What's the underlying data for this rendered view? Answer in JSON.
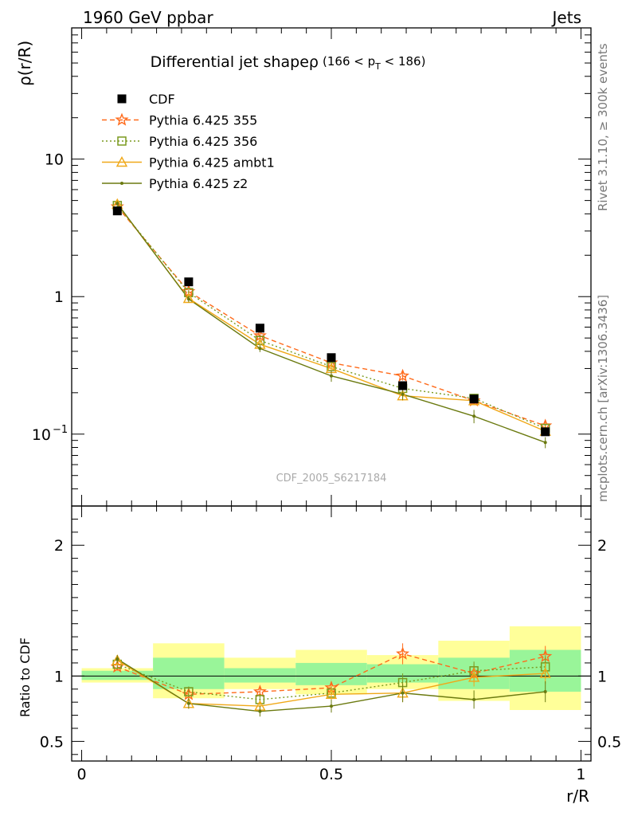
{
  "header": {
    "beam": "1960 GeV ppbar",
    "category": "Jets"
  },
  "side_labels": {
    "rivet": "Rivet 3.1.10, ≥ 300k events",
    "source": "mcplots.cern.ch [arXiv:1306.3436]"
  },
  "chart_data": [
    {
      "type": "scatter",
      "panel": "main",
      "title": "Differential jet shapeρ",
      "title_range": "(166 < p",
      "title_sub": "T",
      "title_range_end": " < 186)",
      "watermark": "CDF_2005_S6217184",
      "ylabel": "ρ(r/R)",
      "xlabel": "",
      "yscale": "log",
      "xlim": [
        -0.02,
        1.02
      ],
      "ylim": [
        0.03,
        90
      ],
      "yticks": [
        {
          "value": 10,
          "label": "10"
        },
        {
          "value": 1,
          "label": "1"
        },
        {
          "value": 0.1,
          "label": "10",
          "sup": "−1"
        }
      ],
      "legend_position": "top-left",
      "x": [
        0.0714,
        0.2143,
        0.3571,
        0.5,
        0.6429,
        0.7857,
        0.9286
      ],
      "series": [
        {
          "name": "CDF",
          "color": "#000000",
          "marker": "square-filled",
          "line": "none",
          "values": [
            4.2,
            1.28,
            0.59,
            0.36,
            0.225,
            0.18,
            0.104
          ],
          "errors": [
            0.1,
            0.03,
            0.015,
            0.01,
            0.008,
            0.006,
            0.005
          ]
        },
        {
          "name": "Pythia 6.425 355",
          "color": "#ff6a1a",
          "marker": "star",
          "line": "dashed",
          "values": [
            4.5,
            1.09,
            0.52,
            0.33,
            0.265,
            0.175,
            0.115
          ],
          "errors": [
            0.1,
            0.05,
            0.025,
            0.02,
            0.02,
            0.012,
            0.008
          ]
        },
        {
          "name": "Pythia 6.425 356",
          "color": "#7a9a1f",
          "marker": "square-open",
          "line": "dotted",
          "values": [
            4.6,
            1.07,
            0.48,
            0.31,
            0.215,
            0.182,
            0.11
          ],
          "errors": [
            0.1,
            0.05,
            0.025,
            0.02,
            0.018,
            0.012,
            0.008
          ]
        },
        {
          "name": "Pythia 6.425 ambt1",
          "color": "#f0a818",
          "marker": "triangle-open",
          "line": "solid",
          "values": [
            4.7,
            0.97,
            0.45,
            0.3,
            0.19,
            0.175,
            0.105
          ],
          "errors": [
            0.1,
            0.05,
            0.025,
            0.02,
            0.015,
            0.012,
            0.008
          ]
        },
        {
          "name": "Pythia 6.425 z2",
          "color": "#6b7a10",
          "marker": "dot",
          "line": "solid",
          "values": [
            4.75,
            0.96,
            0.42,
            0.265,
            0.195,
            0.135,
            0.087
          ],
          "errors": [
            0.1,
            0.05,
            0.025,
            0.025,
            0.018,
            0.015,
            0.008
          ]
        }
      ]
    },
    {
      "type": "scatter",
      "panel": "ratio",
      "ylabel": "Ratio to CDF",
      "xlabel": "r/R",
      "xlim": [
        -0.02,
        1.02
      ],
      "ylim": [
        0.35,
        2.3
      ],
      "yticks": [
        {
          "value": 2,
          "label": "2"
        },
        {
          "value": 1,
          "label": "1"
        },
        {
          "value": 0.5,
          "label": "0.5"
        }
      ],
      "xticks": [
        {
          "value": 0,
          "label": "0"
        },
        {
          "value": 0.5,
          "label": "0.5"
        },
        {
          "value": 1,
          "label": "1"
        }
      ],
      "reference_line": 1,
      "bands": [
        {
          "xlo": 0.0,
          "xhi": 0.1429,
          "yellow": [
            0.95,
            1.06
          ],
          "green": [
            0.97,
            1.04
          ]
        },
        {
          "xlo": 0.1429,
          "xhi": 0.2857,
          "yellow": [
            0.83,
            1.25
          ],
          "green": [
            0.9,
            1.14
          ]
        },
        {
          "xlo": 0.2857,
          "xhi": 0.4286,
          "yellow": [
            0.9,
            1.14
          ],
          "green": [
            0.95,
            1.06
          ]
        },
        {
          "xlo": 0.4286,
          "xhi": 0.5714,
          "yellow": [
            0.86,
            1.2
          ],
          "green": [
            0.93,
            1.1
          ]
        },
        {
          "xlo": 0.5714,
          "xhi": 0.7143,
          "yellow": [
            0.9,
            1.16
          ],
          "green": [
            0.95,
            1.09
          ]
        },
        {
          "xlo": 0.7143,
          "xhi": 0.8571,
          "yellow": [
            0.81,
            1.27
          ],
          "green": [
            0.9,
            1.14
          ]
        },
        {
          "xlo": 0.8571,
          "xhi": 1.0,
          "yellow": [
            0.74,
            1.38
          ],
          "green": [
            0.88,
            1.2
          ]
        }
      ],
      "x": [
        0.0714,
        0.2143,
        0.3571,
        0.5,
        0.6429,
        0.7857,
        0.9286
      ],
      "series": [
        {
          "name": "Pythia 6.425 355",
          "values": [
            1.07,
            0.86,
            0.88,
            0.91,
            1.17,
            1.02,
            1.15
          ],
          "errors": [
            0.03,
            0.04,
            0.04,
            0.05,
            0.08,
            0.07,
            0.08
          ]
        },
        {
          "name": "Pythia 6.425 356",
          "values": [
            1.09,
            0.88,
            0.82,
            0.87,
            0.95,
            1.04,
            1.07
          ],
          "errors": [
            0.03,
            0.04,
            0.04,
            0.05,
            0.07,
            0.07,
            0.08
          ]
        },
        {
          "name": "Pythia 6.425 ambt1",
          "values": [
            1.12,
            0.79,
            0.77,
            0.86,
            0.87,
            0.99,
            1.02
          ],
          "errors": [
            0.03,
            0.04,
            0.04,
            0.05,
            0.07,
            0.07,
            0.08
          ]
        },
        {
          "name": "Pythia 6.425 z2",
          "values": [
            1.13,
            0.79,
            0.73,
            0.77,
            0.87,
            0.82,
            0.88
          ],
          "errors": [
            0.03,
            0.04,
            0.04,
            0.05,
            0.07,
            0.07,
            0.08
          ]
        }
      ]
    }
  ]
}
